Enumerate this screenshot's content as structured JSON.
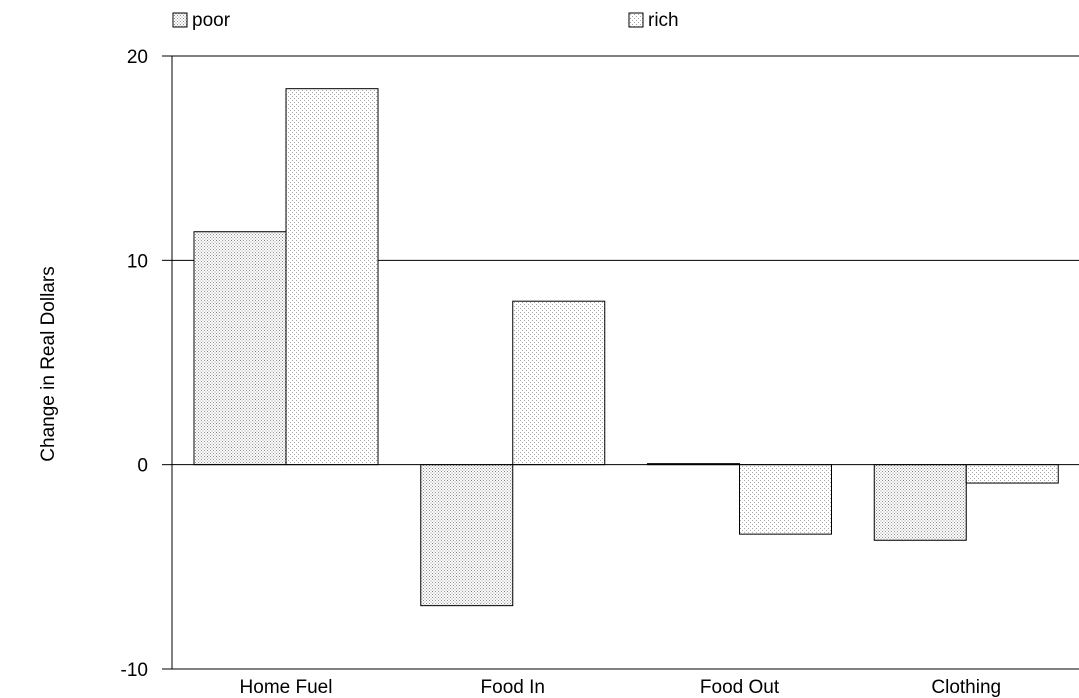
{
  "chart_data": {
    "type": "bar",
    "categories": [
      "Home Fuel",
      "Food In",
      "Food Out",
      "Clothing"
    ],
    "series": [
      {
        "name": "poor",
        "values": [
          11.4,
          -6.9,
          0.05,
          -3.7
        ],
        "pattern_color": "#8f8f8f"
      },
      {
        "name": "rich",
        "values": [
          18.4,
          8.0,
          -3.4,
          -0.9
        ],
        "pattern_color": "#a9a9a9"
      }
    ],
    "ylabel": "Change in Real Dollars",
    "xlabel": "",
    "title": "",
    "ylim": [
      -10,
      20
    ],
    "yticks": [
      20,
      10,
      0,
      -10
    ],
    "grid": "horizontal",
    "legend": "top",
    "colors": {
      "axis": "#000000",
      "bar_fill": "#ffffff",
      "bar_stroke": "#000000"
    }
  }
}
